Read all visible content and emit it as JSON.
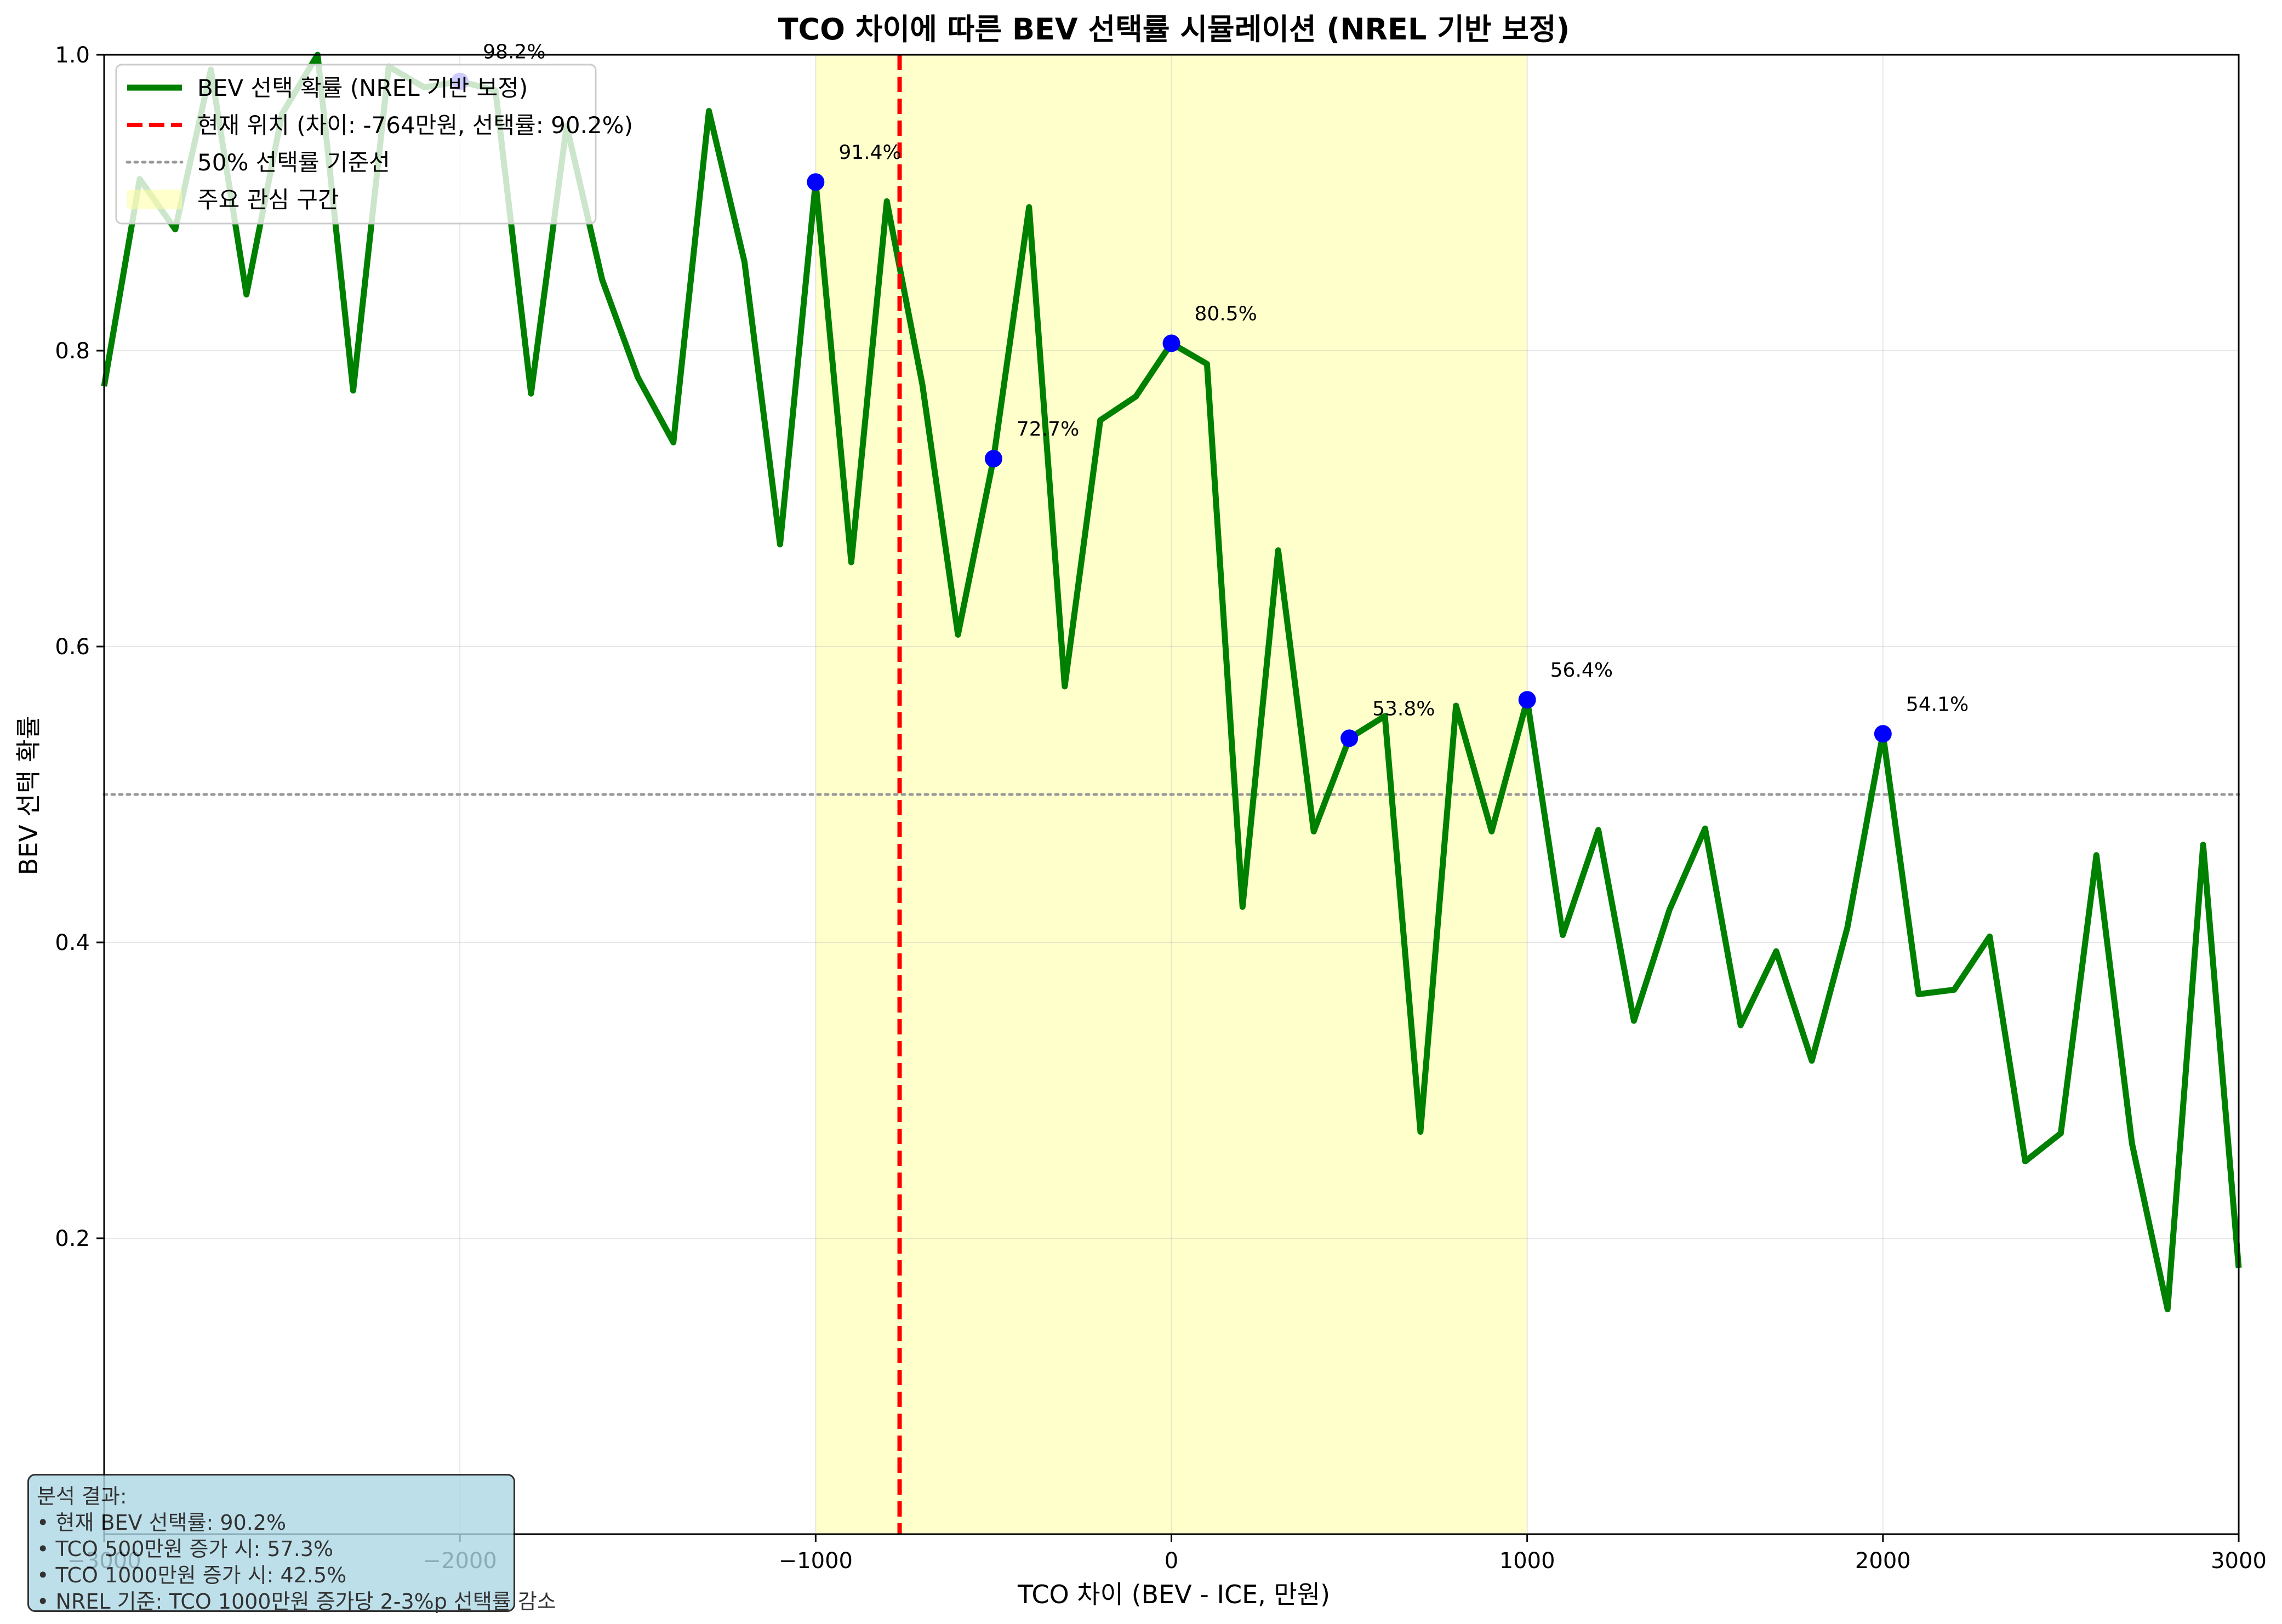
{
  "chart_data": {
    "type": "line",
    "title": "TCO 차이에 따른 BEV 선택률 시뮬레이션 (NREL 기반 보정)",
    "xlabel": "TCO 차이 (BEV - ICE, 만원)",
    "ylabel": "BEV 선택 확률",
    "xlim": [
      -3000,
      3000
    ],
    "ylim": [
      0.0,
      1.0
    ],
    "x_ticks": [
      -3000,
      -2000,
      -1000,
      0,
      1000,
      2000,
      3000
    ],
    "x_tick_labels": [
      "−3000",
      "−2000",
      "−1000",
      "0",
      "1000",
      "2000",
      "3000"
    ],
    "y_ticks": [
      0.2,
      0.4,
      0.6,
      0.8,
      1.0
    ],
    "y_tick_labels": [
      "0.2",
      "0.4",
      "0.6",
      "0.8",
      "1.0"
    ],
    "grid": true,
    "legend_position": "top-left",
    "series": [
      {
        "name": "BEV 선택 확률 (NREL 기반 보정)",
        "color": "#008000",
        "x": [
          -3000,
          -2900,
          -2800,
          -2700,
          -2600,
          -2500,
          -2400,
          -2300,
          -2200,
          -2100,
          -2000,
          -1900,
          -1800,
          -1700,
          -1600,
          -1500,
          -1400,
          -1300,
          -1200,
          -1100,
          -1000,
          -900,
          -800,
          -700,
          -600,
          -500,
          -400,
          -300,
          -200,
          -100,
          0,
          100,
          200,
          300,
          400,
          500,
          600,
          700,
          800,
          900,
          1000,
          1100,
          1200,
          1300,
          1400,
          1500,
          1600,
          1700,
          1800,
          1900,
          2000,
          2100,
          2200,
          2300,
          2400,
          2500,
          2600,
          2700,
          2800,
          2900,
          3000
        ],
        "y": [
          0.776,
          0.916,
          0.882,
          0.99,
          0.838,
          0.96,
          1.0,
          0.773,
          0.992,
          0.978,
          0.982,
          0.976,
          0.771,
          0.952,
          0.848,
          0.782,
          0.738,
          0.962,
          0.86,
          0.669,
          0.914,
          0.657,
          0.901,
          0.777,
          0.608,
          0.727,
          0.897,
          0.573,
          0.753,
          0.769,
          0.805,
          0.791,
          0.424,
          0.665,
          0.475,
          0.538,
          0.553,
          0.272,
          0.56,
          0.475,
          0.564,
          0.405,
          0.476,
          0.347,
          0.422,
          0.477,
          0.344,
          0.394,
          0.32,
          0.41,
          0.541,
          0.365,
          0.368,
          0.404,
          0.252,
          0.271,
          0.459,
          0.264,
          0.152,
          0.466,
          0.18
        ]
      }
    ],
    "markers": {
      "color": "#0000ff",
      "points": [
        {
          "x": -2000,
          "y": 0.982,
          "label": "98.2%"
        },
        {
          "x": -1000,
          "y": 0.914,
          "label": "91.4%"
        },
        {
          "x": -500,
          "y": 0.727,
          "label": "72.7%"
        },
        {
          "x": 0,
          "y": 0.805,
          "label": "80.5%"
        },
        {
          "x": 500,
          "y": 0.538,
          "label": "53.8%"
        },
        {
          "x": 1000,
          "y": 0.564,
          "label": "56.4%"
        },
        {
          "x": 2000,
          "y": 0.541,
          "label": "54.1%"
        }
      ]
    },
    "current_point": {
      "x": -764,
      "color": "#ff0000",
      "label": "현재 위치 (차이: -764만원, 선택률: 90.2%)"
    },
    "threshold": {
      "y": 0.5,
      "color": "#999999",
      "label": "50% 선택률 기준선"
    },
    "shaded_region": {
      "x0": -1000,
      "x1": 1000,
      "color": "#ffff99",
      "label": "주요 관심 구간"
    }
  },
  "info_box": {
    "lines": [
      "분석 결과:",
      "• 현재 BEV 선택률: 90.2%",
      "• TCO 500만원 증가 시: 57.3%",
      "• TCO 1000만원 증가 시: 42.5%",
      "• NREL 기준: TCO 1000만원 증가당 2-3%p 선택률 감소"
    ]
  }
}
